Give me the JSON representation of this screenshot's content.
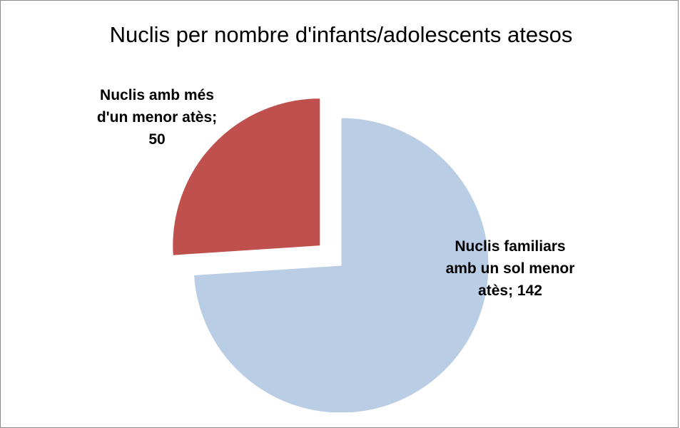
{
  "chart_data": {
    "type": "pie",
    "title": "Nuclis per nombre d'infants/adolescents atesos",
    "values": [
      142,
      50
    ],
    "value_labels": [
      "Nuclis familiars amb un sol menor atès; 142",
      "Nuclis amb més d'un menor atès; 50"
    ],
    "colors": [
      "#b9cde5",
      "#c0504d"
    ],
    "explode": [
      false,
      true
    ]
  }
}
